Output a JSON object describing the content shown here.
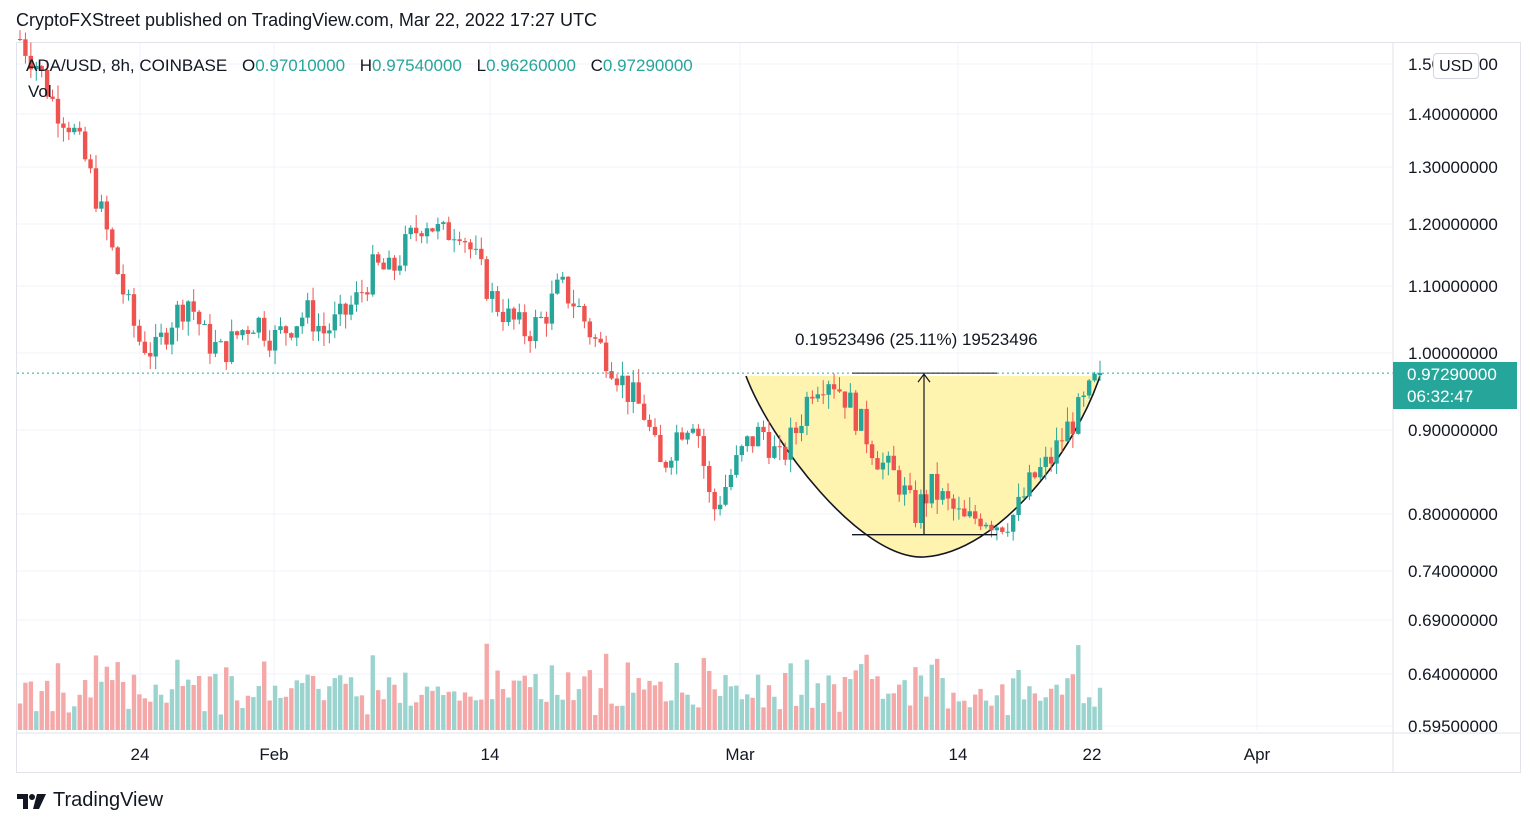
{
  "header": {
    "published": "CryptoFXStreet published on TradingView.com, Mar 22, 2022 17:27 UTC"
  },
  "legend": {
    "symbol": "ADA/USD, 8h, COINBASE",
    "o_key": "O",
    "o": "0.97010000",
    "h_key": "H",
    "h": "0.97540000",
    "l_key": "L",
    "l": "0.96260000",
    "c_key": "C",
    "c": "0.97290000",
    "vol": "Vol"
  },
  "currency_button": "USD",
  "price_tag": {
    "price": "0.97290000",
    "countdown": "06:32:47"
  },
  "measure": {
    "label": "0.19523496 (25.11%) 19523496",
    "from": 0.7777,
    "to": 0.9729
  },
  "footer": {
    "brand": "TradingView"
  },
  "colors": {
    "up": "#26a69a",
    "down": "#ef5350",
    "up_vol": "#9bd4cf",
    "down_vol": "#f4a9a8",
    "pattern_fill": "#fff3b0",
    "line": "#131722"
  },
  "chart_data": {
    "type": "candlestick",
    "title": "ADA/USD, 8h, COINBASE",
    "last_price": 0.9729,
    "y_axis": {
      "ticks": [
        "1.50000000",
        "1.40000000",
        "1.30000000",
        "1.20000000",
        "1.10000000",
        "1.00000000",
        "0.90000000",
        "0.80000000",
        "0.74000000",
        "0.69000000",
        "0.64000000",
        "0.59500000"
      ],
      "range": [
        0.595,
        1.55
      ],
      "scale": "log"
    },
    "x_axis": {
      "ticks": [
        "24",
        "Feb",
        "14",
        "Mar",
        "14",
        "22",
        "Apr"
      ]
    },
    "series": [
      {
        "name": "ADA/USD close",
        "values": [
          1.55,
          1.5,
          1.42,
          1.38,
          1.3,
          1.2,
          1.1,
          1.02,
          1.0,
          1.05,
          1.08,
          1.02,
          1.0,
          1.03,
          1.05,
          1.02,
          1.04,
          1.06,
          1.03,
          1.05,
          1.08,
          1.13,
          1.12,
          1.17,
          1.21,
          1.18,
          1.2,
          1.14,
          1.08,
          1.05,
          1.03,
          1.05,
          1.1,
          1.07,
          1.02,
          0.99,
          0.95,
          0.92,
          0.85,
          0.9,
          0.92,
          0.8,
          0.84,
          0.88,
          0.9,
          0.86,
          0.9,
          0.96,
          0.97,
          0.94,
          0.9,
          0.86,
          0.84,
          0.8,
          0.83,
          0.81,
          0.79,
          0.8,
          0.79,
          0.8,
          0.84,
          0.86,
          0.9,
          0.93,
          0.9729
        ]
      }
    ],
    "annotations": [
      "Cup pattern (shaded)",
      "Measured move 0.19523496 (25.11%)"
    ]
  }
}
